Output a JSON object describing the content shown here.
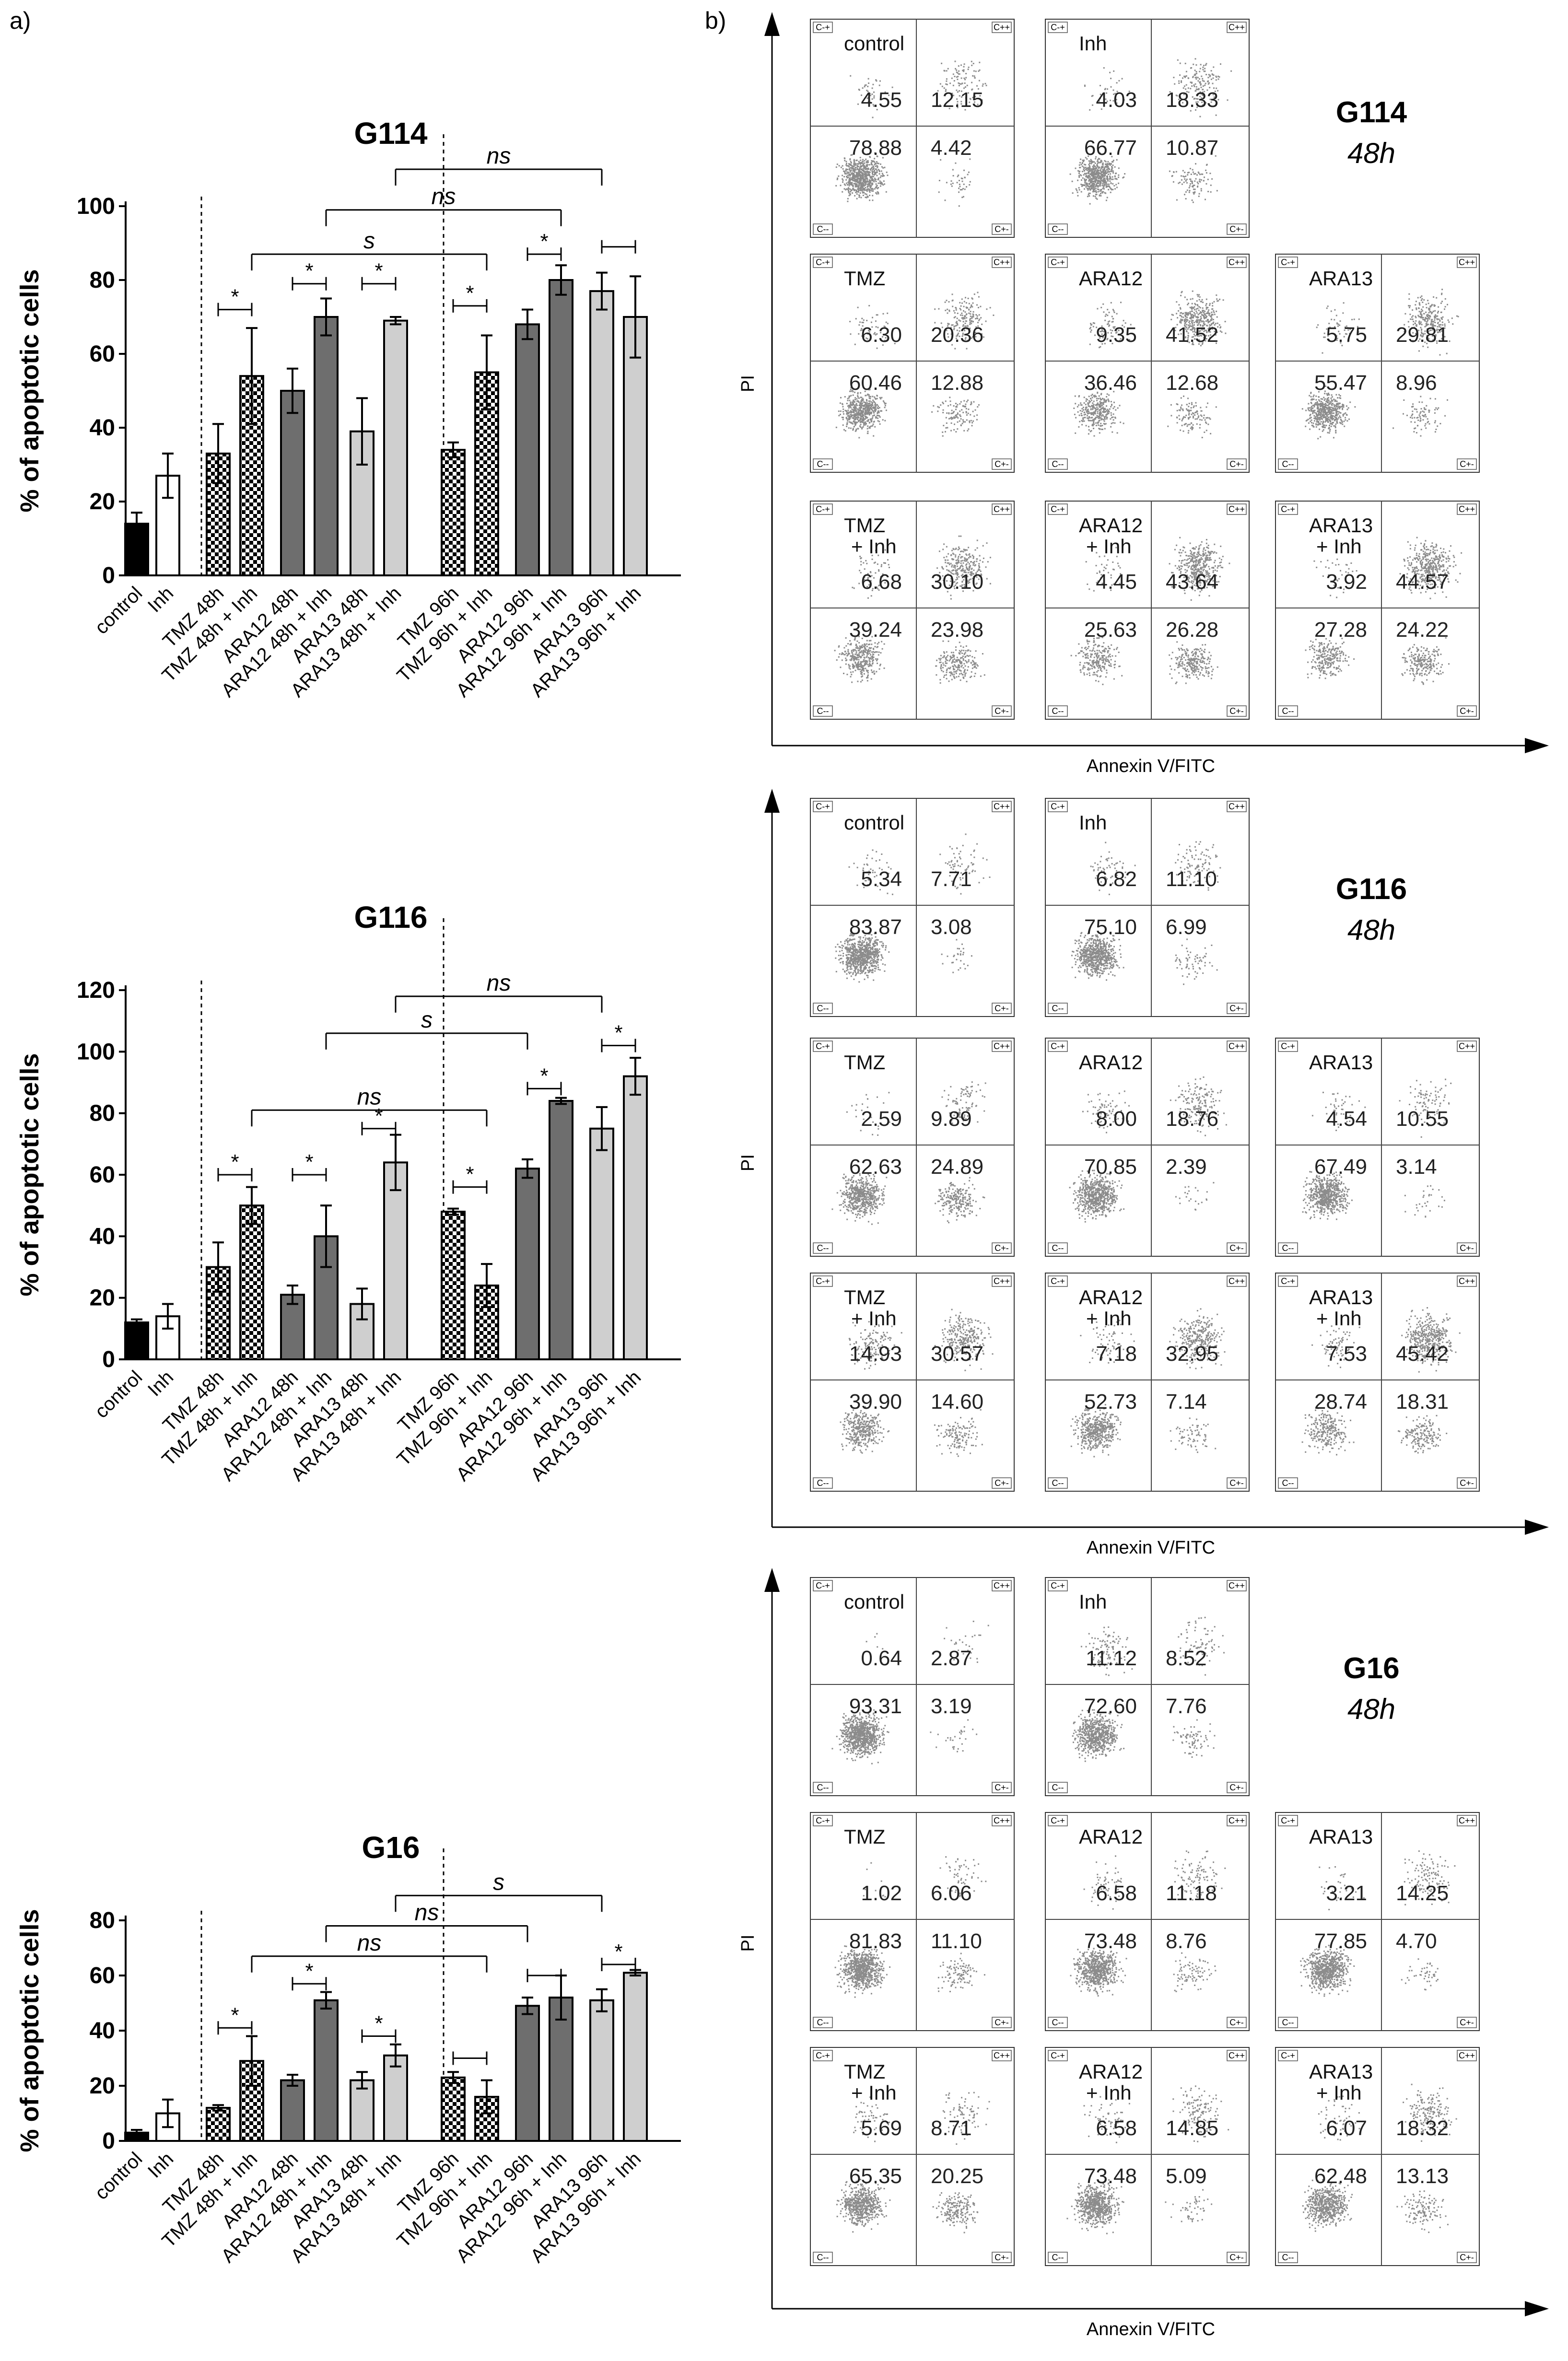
{
  "figure_labels": {
    "a": "a)",
    "b": "b)"
  },
  "colors": {
    "control": "#000000",
    "inh": "#ffffff",
    "tmz": "#checker",
    "ara12": "#6e6e6e",
    "ara13": "#cfcfcf",
    "dots": "#8c8c8c"
  },
  "chart_data": [
    {
      "type": "bar",
      "title": "G114",
      "ylabel": "% of apoptotic cells",
      "ylim": [
        0,
        100
      ],
      "yticks": [
        0,
        20,
        40,
        60,
        80,
        100
      ],
      "categories": [
        "control",
        "Inh",
        "TMZ 48h",
        "TMZ 48h + Inh",
        "ARA12 48h",
        "ARA12 48h + Inh",
        "ARA13 48h",
        "ARA13 48h + Inh",
        "TMZ 96h",
        "TMZ 96h + Inh",
        "ARA12 96h",
        "ARA12 96h + Inh",
        "ARA13 96h",
        "ARA13 96h + Inh"
      ],
      "values": [
        14,
        27,
        33,
        54,
        50,
        70,
        39,
        69,
        34,
        55,
        68,
        80,
        77,
        70
      ],
      "errors": [
        3,
        6,
        8,
        13,
        6,
        5,
        9,
        1,
        2,
        10,
        4,
        4,
        5,
        11
      ],
      "brackets": [
        {
          "from": 2,
          "to": 3,
          "label": "*",
          "y": 72
        },
        {
          "from": 4,
          "to": 5,
          "label": "*",
          "y": 79
        },
        {
          "from": 6,
          "to": 7,
          "label": "*",
          "y": 79
        },
        {
          "from": 8,
          "to": 9,
          "label": "*",
          "y": 73
        },
        {
          "from": 10,
          "to": 11,
          "label": "*",
          "y": 87
        },
        {
          "from": 12,
          "to": 13,
          "label": "",
          "y": 89
        },
        {
          "from": 3,
          "to": 9,
          "label": "s",
          "y": 87
        },
        {
          "from": 5,
          "to": 11,
          "label": "ns",
          "y": 99
        },
        {
          "from": 7,
          "to": 12,
          "label": "ns",
          "y": 110
        }
      ]
    },
    {
      "type": "bar",
      "title": "G116",
      "ylabel": "% of apoptotic cells",
      "ylim": [
        0,
        120
      ],
      "yticks": [
        0,
        20,
        40,
        60,
        80,
        100,
        120
      ],
      "categories": [
        "control",
        "Inh",
        "TMZ 48h",
        "TMZ 48h + Inh",
        "ARA12 48h",
        "ARA12 48h + Inh",
        "ARA13 48h",
        "ARA13 48h + Inh",
        "TMZ 96h",
        "TMZ 96h + Inh",
        "ARA12 96h",
        "ARA12 96h + Inh",
        "ARA13 96h",
        "ARA13 96h + Inh"
      ],
      "values": [
        12,
        14,
        30,
        50,
        21,
        40,
        18,
        64,
        48,
        24,
        62,
        84,
        75,
        92
      ],
      "errors": [
        1,
        4,
        8,
        6,
        3,
        10,
        5,
        9,
        1,
        7,
        3,
        1,
        7,
        6
      ],
      "brackets": [
        {
          "from": 2,
          "to": 3,
          "label": "*",
          "y": 60
        },
        {
          "from": 4,
          "to": 5,
          "label": "*",
          "y": 60
        },
        {
          "from": 6,
          "to": 7,
          "label": "*",
          "y": 75
        },
        {
          "from": 8,
          "to": 9,
          "label": "*",
          "y": 56
        },
        {
          "from": 10,
          "to": 11,
          "label": "*",
          "y": 88
        },
        {
          "from": 12,
          "to": 13,
          "label": "*",
          "y": 102
        },
        {
          "from": 3,
          "to": 9,
          "label": "ns",
          "y": 81
        },
        {
          "from": 5,
          "to": 10,
          "label": "s",
          "y": 106
        },
        {
          "from": 7,
          "to": 12,
          "label": "ns",
          "y": 118
        }
      ]
    },
    {
      "type": "bar",
      "title": "G16",
      "ylabel": "% of apoptotic cells",
      "ylim": [
        0,
        80
      ],
      "yticks": [
        0,
        20,
        40,
        60,
        80
      ],
      "categories": [
        "control",
        "Inh",
        "TMZ 48h",
        "TMZ 48h + Inh",
        "ARA12 48h",
        "ARA12 48h + Inh",
        "ARA13 48h",
        "ARA13 48h + Inh",
        "TMZ 96h",
        "TMZ 96h + Inh",
        "ARA12 96h",
        "ARA12 96h + Inh",
        "ARA13 96h",
        "ARA13 96h + Inh"
      ],
      "values": [
        3,
        10,
        12,
        29,
        22,
        51,
        22,
        31,
        23,
        16,
        49,
        52,
        51,
        61
      ],
      "errors": [
        1,
        5,
        1,
        9,
        2,
        3,
        3,
        4,
        2,
        6,
        3,
        8,
        4,
        1
      ],
      "brackets": [
        {
          "from": 2,
          "to": 3,
          "label": "*",
          "y": 41
        },
        {
          "from": 4,
          "to": 5,
          "label": "*",
          "y": 57
        },
        {
          "from": 6,
          "to": 7,
          "label": "*",
          "y": 38
        },
        {
          "from": 8,
          "to": 9,
          "label": "",
          "y": 30
        },
        {
          "from": 10,
          "to": 11,
          "label": "",
          "y": 60
        },
        {
          "from": 12,
          "to": 13,
          "label": "*",
          "y": 64
        },
        {
          "from": 3,
          "to": 9,
          "label": "ns",
          "y": 67
        },
        {
          "from": 5,
          "to": 10,
          "label": "ns",
          "y": 78
        },
        {
          "from": 7,
          "to": 12,
          "label": "s",
          "y": 89
        }
      ]
    }
  ],
  "flow_panels": [
    {
      "title": "G114",
      "subtitle": "48h",
      "x_axis": "Annexin V/FITC",
      "y_axis": "PI",
      "plots": [
        {
          "label": "control",
          "q": [
            "4.55",
            "12.15",
            "78.88",
            "4.42"
          ]
        },
        {
          "label": "Inh",
          "q": [
            "4.03",
            "18.33",
            "66.77",
            "10.87"
          ]
        },
        {
          "label": "TMZ",
          "q": [
            "6.30",
            "20.36",
            "60.46",
            "12.88"
          ]
        },
        {
          "label": "ARA12",
          "q": [
            "9.35",
            "41.52",
            "36.46",
            "12.68"
          ]
        },
        {
          "label": "ARA13",
          "q": [
            "5.75",
            "29.81",
            "55.47",
            "8.96"
          ]
        },
        {
          "label": "TMZ\n+ Inh",
          "q": [
            "6.68",
            "30.10",
            "39.24",
            "23.98"
          ]
        },
        {
          "label": "ARA12\n+ Inh",
          "q": [
            "4.45",
            "43.64",
            "25.63",
            "26.28"
          ]
        },
        {
          "label": "ARA13\n+ Inh",
          "q": [
            "3.92",
            "44.57",
            "27.28",
            "24.22"
          ]
        }
      ]
    },
    {
      "title": "G116",
      "subtitle": "48h",
      "x_axis": "Annexin V/FITC",
      "y_axis": "PI",
      "plots": [
        {
          "label": "control",
          "q": [
            "5.34",
            "7.71",
            "83.87",
            "3.08"
          ]
        },
        {
          "label": "Inh",
          "q": [
            "6.82",
            "11.10",
            "75.10",
            "6.99"
          ]
        },
        {
          "label": "TMZ",
          "q": [
            "2.59",
            "9.89",
            "62.63",
            "24.89"
          ]
        },
        {
          "label": "ARA12",
          "q": [
            "8.00",
            "18.76",
            "70.85",
            "2.39"
          ]
        },
        {
          "label": "ARA13",
          "q": [
            "4.54",
            "10.55",
            "67.49",
            "3.14"
          ]
        },
        {
          "label": "TMZ\n+ Inh",
          "q": [
            "14.93",
            "30.57",
            "39.90",
            "14.60"
          ]
        },
        {
          "label": "ARA12\n+ Inh",
          "q": [
            "7.18",
            "32.95",
            "52.73",
            "7.14"
          ]
        },
        {
          "label": "ARA13\n+ Inh",
          "q": [
            "7.53",
            "45.42",
            "28.74",
            "18.31"
          ]
        }
      ]
    },
    {
      "title": "G16",
      "subtitle": "48h",
      "x_axis": "Annexin V/FITC",
      "y_axis": "PI",
      "plots": [
        {
          "label": "control",
          "q": [
            "0.64",
            "2.87",
            "93.31",
            "3.19"
          ]
        },
        {
          "label": "Inh",
          "q": [
            "11.12",
            "8.52",
            "72.60",
            "7.76"
          ]
        },
        {
          "label": "TMZ",
          "q": [
            "1.02",
            "6.06",
            "81.83",
            "11.10"
          ]
        },
        {
          "label": "ARA12",
          "q": [
            "6.58",
            "11.18",
            "73.48",
            "8.76"
          ]
        },
        {
          "label": "ARA13",
          "q": [
            "3.21",
            "14.25",
            "77.85",
            "4.70"
          ]
        },
        {
          "label": "TMZ\n+ Inh",
          "q": [
            "5.69",
            "8.71",
            "65.35",
            "20.25"
          ]
        },
        {
          "label": "ARA12\n+ Inh",
          "q": [
            "6.58",
            "14.85",
            "73.48",
            "5.09"
          ]
        },
        {
          "label": "ARA13\n+ Inh",
          "q": [
            "6.07",
            "18.32",
            "62.48",
            "13.13"
          ]
        }
      ]
    }
  ],
  "quadrant_corner_labels": [
    "C-+",
    "C++",
    "C--",
    "C+-"
  ]
}
